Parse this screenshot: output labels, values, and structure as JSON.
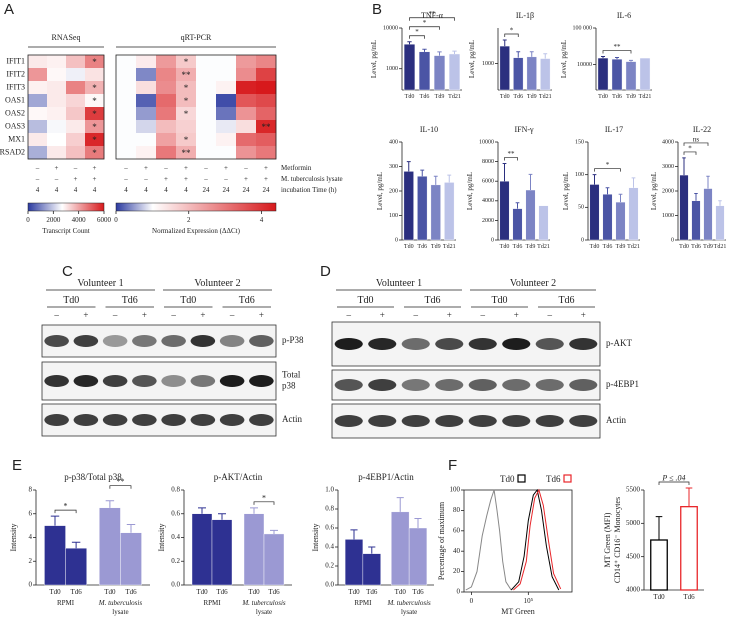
{
  "panel_labels": [
    "A",
    "B",
    "C",
    "D",
    "E",
    "F"
  ],
  "heatmap": {
    "sections": [
      "RNASeq",
      "qRT-PCR"
    ],
    "genes": [
      "IFIT1",
      "IFIT2",
      "IFIT3",
      "OAS1",
      "OAS2",
      "OAS3",
      "MX1",
      "RSAD2"
    ],
    "rnaseq_values": [
      [
        3000,
        2900,
        3600,
        4500
      ],
      [
        4200,
        2800,
        2500,
        3100
      ],
      [
        2900,
        3000,
        4500,
        3800
      ],
      [
        1500,
        3000,
        3300,
        2800
      ],
      [
        2800,
        2900,
        3500,
        5500
      ],
      [
        1800,
        2600,
        3000,
        4200
      ],
      [
        3000,
        2700,
        3400,
        5800
      ],
      [
        1600,
        3000,
        3600,
        4600
      ]
    ],
    "qpcr_values": [
      [
        1,
        1.3,
        2.5,
        1.8,
        1,
        1,
        2.5,
        2.8
      ],
      [
        1,
        0.4,
        2.8,
        2.2,
        1,
        1,
        2.7,
        3.8
      ],
      [
        1,
        1.5,
        2.7,
        2.0,
        1,
        1.2,
        4.3,
        4.6
      ],
      [
        1,
        0.2,
        3.2,
        2.0,
        1,
        0.1,
        3.5,
        3.7
      ],
      [
        1,
        0.5,
        3.0,
        1.6,
        1,
        0.3,
        2.6,
        3.3
      ],
      [
        1,
        0.8,
        2.0,
        1.7,
        1,
        0.9,
        1.5,
        4.2
      ],
      [
        1,
        1.0,
        2.4,
        1.8,
        1,
        1.2,
        3.2,
        3.4
      ],
      [
        1,
        1.2,
        3.0,
        2.2,
        1,
        1.0,
        2.6,
        3.0
      ]
    ],
    "rnaseq_stars": [
      [
        null,
        null,
        null,
        "*"
      ],
      [
        null,
        null,
        null,
        null
      ],
      [
        null,
        null,
        null,
        "*"
      ],
      [
        null,
        null,
        null,
        "*"
      ],
      [
        null,
        null,
        null,
        "*"
      ],
      [
        null,
        null,
        null,
        "*"
      ],
      [
        null,
        null,
        null,
        "*"
      ],
      [
        null,
        null,
        null,
        "*"
      ]
    ],
    "qpcr_stars": [
      [
        null,
        null,
        null,
        "*",
        null,
        null,
        null,
        null
      ],
      [
        null,
        null,
        null,
        "**",
        null,
        null,
        null,
        null
      ],
      [
        null,
        null,
        null,
        "*",
        null,
        null,
        null,
        null
      ],
      [
        null,
        null,
        null,
        "*",
        null,
        null,
        null,
        null
      ],
      [
        null,
        null,
        null,
        "*",
        null,
        null,
        null,
        null
      ],
      [
        null,
        null,
        null,
        null,
        null,
        null,
        null,
        "**"
      ],
      [
        null,
        null,
        null,
        "*",
        null,
        null,
        null,
        null
      ],
      [
        null,
        null,
        null,
        "**",
        null,
        null,
        null,
        null
      ]
    ],
    "condition_labels": [
      "Metformin",
      "M. tuberculosis lysate",
      "incubation Time (h)"
    ],
    "rnaseq_conditions": [
      [
        "–",
        "+",
        "–",
        "+"
      ],
      [
        "–",
        "–",
        "+",
        "+"
      ],
      [
        "4",
        "4",
        "4",
        "4"
      ]
    ],
    "qpcr_conditions": [
      [
        "–",
        "+",
        "–",
        "+",
        "–",
        "+",
        "–",
        "+"
      ],
      [
        "–",
        "–",
        "+",
        "+",
        "–",
        "–",
        "+",
        "+"
      ],
      [
        "4",
        "4",
        "4",
        "4",
        "24",
        "24",
        "24",
        "24"
      ]
    ],
    "rnaseq_scale": {
      "label": "Transcript Count",
      "lim": [
        0,
        6000
      ],
      "ticks": [
        0,
        2000,
        4000,
        6000
      ]
    },
    "qpcr_scale": {
      "label": "Normalized Expression (ΔΔCt)",
      "lim": [
        0,
        4.4
      ],
      "ticks": [
        0,
        2,
        4
      ]
    }
  },
  "cytokines": [
    {
      "type": "bar",
      "title": "TNF-α",
      "ylabel": "Level, pg/mL",
      "categories": [
        "Td0",
        "Td6",
        "Td9",
        "Td21"
      ],
      "values": [
        4000,
        2600,
        2100,
        2300
      ],
      "errors": [
        600,
        400,
        500,
        400
      ],
      "colors": [
        "#2b2f7f",
        "#4b55a5",
        "#7c84c4",
        "#bcc3e8"
      ],
      "log": true,
      "ylim": [
        300,
        10000
      ],
      "yticks": [
        1000,
        10000
      ],
      "brackets": [
        {
          "from": 0,
          "to": 1,
          "label": "*"
        },
        {
          "from": 0,
          "to": 2,
          "label": "*"
        },
        {
          "from": 0,
          "to": 3,
          "label": "**"
        }
      ]
    },
    {
      "type": "bar",
      "title": "IL-1β",
      "ylabel": "Level, pg/mL",
      "categories": [
        "Td0",
        "Td6",
        "Td9",
        "Td21"
      ],
      "values": [
        2200,
        1300,
        1350,
        1250
      ],
      "errors": [
        700,
        400,
        350,
        300
      ],
      "colors": [
        "#2b2f7f",
        "#4b55a5",
        "#7c84c4",
        "#bcc3e8"
      ],
      "log": true,
      "ylim": [
        300,
        5000
      ],
      "yticks": [
        1000
      ],
      "brackets": [
        {
          "from": 0,
          "to": 1,
          "label": "*"
        }
      ]
    },
    {
      "type": "bar",
      "title": "IL-6",
      "ylabel": "Level, pg/mL",
      "categories": [
        "Td0",
        "Td6",
        "Td9",
        "Td21"
      ],
      "values": [
        15000,
        14000,
        12000,
        15000
      ],
      "errors": [
        1500,
        1500,
        1000,
        null
      ],
      "colors": [
        "#2b2f7f",
        "#4b55a5",
        "#7c84c4",
        "#bcc3e8"
      ],
      "log": true,
      "ylim": [
        2000,
        100000
      ],
      "yticks": [
        10000,
        {
          "value": 100000,
          "label": "100 000"
        }
      ],
      "brackets": [
        {
          "from": 0,
          "to": 2,
          "label": "**"
        }
      ]
    },
    {
      "type": "bar",
      "title": "IL-10",
      "ylabel": "Level, pg/mL",
      "categories": [
        "Td0",
        "Td6",
        "Td9",
        "Td21"
      ],
      "values": [
        280,
        260,
        225,
        235
      ],
      "errors": [
        40,
        25,
        35,
        30
      ],
      "colors": [
        "#2b2f7f",
        "#4b55a5",
        "#7c84c4",
        "#bcc3e8"
      ],
      "ylim": [
        0,
        400
      ],
      "yticks": [
        0,
        100,
        200,
        300,
        400
      ]
    },
    {
      "type": "bar",
      "title": "IFN-γ",
      "ylabel": "Level, pg/mL",
      "categories": [
        "Td0",
        "Td6",
        "Td9",
        "Td21"
      ],
      "values": [
        6000,
        3200,
        5100,
        3500
      ],
      "errors": [
        1800,
        600,
        1600,
        null
      ],
      "colors": [
        "#2b2f7f",
        "#4b55a5",
        "#7c84c4",
        "#bcc3e8"
      ],
      "ylim": [
        0,
        10000
      ],
      "yticks": [
        0,
        2000,
        4000,
        6000,
        8000,
        10000
      ],
      "brackets": [
        {
          "from": 0,
          "to": 1,
          "label": "**"
        }
      ]
    },
    {
      "type": "bar",
      "title": "IL-17",
      "ylabel": "Level, pg/mL",
      "categories": [
        "Td0",
        "Td6",
        "Td9",
        "Td21"
      ],
      "values": [
        85,
        70,
        58,
        80
      ],
      "errors": [
        15,
        10,
        12,
        15
      ],
      "colors": [
        "#2b2f7f",
        "#4b55a5",
        "#7c84c4",
        "#bcc3e8"
      ],
      "ylim": [
        0,
        150
      ],
      "yticks": [
        0,
        50,
        100,
        150
      ],
      "brackets": [
        {
          "from": 0,
          "to": 2,
          "label": "*"
        }
      ]
    },
    {
      "type": "bar",
      "title": "IL-22",
      "ylabel": "Level, pg/mL",
      "categories": [
        "Td0",
        "Td6",
        "Td9",
        "Td21"
      ],
      "values": [
        2650,
        1600,
        2100,
        1400
      ],
      "errors": [
        700,
        300,
        500,
        200
      ],
      "colors": [
        "#2b2f7f",
        "#4b55a5",
        "#7c84c4",
        "#bcc3e8"
      ],
      "ylim": [
        0,
        4000
      ],
      "yticks": [
        0,
        1000,
        2000,
        3000,
        4000
      ],
      "brackets": [
        {
          "from": 0,
          "to": 1,
          "label": "*"
        },
        {
          "from": 0,
          "to": 2,
          "label": "ns"
        }
      ]
    }
  ],
  "blot_c": {
    "volunteers": [
      "Volunteer 1",
      "Volunteer 2"
    ],
    "timepoints": [
      "Td0",
      "Td6",
      "Td0",
      "Td6"
    ],
    "treatment": [
      "–",
      "+",
      "–",
      "+",
      "–",
      "+",
      "–",
      "+"
    ],
    "bands": [
      [
        "p-P38"
      ],
      [
        "Total",
        "p38"
      ],
      [
        "Actin"
      ]
    ]
  },
  "blot_d": {
    "volunteers": [
      "Volunteer 1",
      "Volunteer 2"
    ],
    "timepoints": [
      "Td0",
      "Td6",
      "Td0",
      "Td6"
    ],
    "treatment": [
      "–",
      "+",
      "–",
      "+",
      "–",
      "+",
      "–",
      "+"
    ],
    "bands": [
      [
        "p-AKT"
      ],
      [
        "p-4EBP1"
      ],
      [
        "Actin"
      ]
    ]
  },
  "quantification": [
    {
      "type": "bar",
      "title": "p-p38/Total p38",
      "ylabel": "Intensity",
      "categories": [
        "Td0",
        "Td6",
        "Td0",
        "Td6"
      ],
      "groups": [
        [
          "RPMI"
        ],
        [
          "M. tuberculosis",
          "lysate"
        ]
      ],
      "values": [
        5.0,
        3.1,
        6.5,
        4.4
      ],
      "errors": [
        0.8,
        0.5,
        0.6,
        0.7
      ],
      "colors": [
        "#2e3192",
        "#2e3192",
        "#9b99d3",
        "#9b99d3"
      ],
      "ylim": [
        0,
        8
      ],
      "yticks": [
        0,
        2,
        4,
        6,
        8
      ],
      "brackets": [
        {
          "from": 0,
          "to": 1,
          "label": "*"
        },
        {
          "from": 2,
          "to": 3,
          "label": "**"
        }
      ]
    },
    {
      "type": "bar",
      "title": "p-AKT/Actin",
      "ylabel": "Intensity",
      "categories": [
        "Td0",
        "Td6",
        "Td0",
        "Td6"
      ],
      "groups": [
        [
          "RPMI"
        ],
        [
          "M. tuberculosis",
          "lysate"
        ]
      ],
      "values": [
        0.6,
        0.55,
        0.6,
        0.43
      ],
      "errors": [
        0.05,
        0.05,
        0.05,
        0.03
      ],
      "colors": [
        "#2e3192",
        "#2e3192",
        "#9b99d3",
        "#9b99d3"
      ],
      "ylim": [
        0,
        0.8
      ],
      "yticks": [
        {
          "value": 0,
          "label": "0.0"
        },
        0.2,
        0.4,
        0.6,
        0.8
      ],
      "brackets": [
        {
          "from": 2,
          "to": 3,
          "label": "*"
        }
      ]
    },
    {
      "type": "bar",
      "title": "p-4EBP1/Actin",
      "ylabel": "Intensity",
      "categories": [
        "Td0",
        "Td6",
        "Td0",
        "Td6"
      ],
      "groups": [
        [
          "RPMI"
        ],
        [
          "M. tuberculosis",
          "lysate"
        ]
      ],
      "values": [
        0.48,
        0.33,
        0.77,
        0.6
      ],
      "errors": [
        0.1,
        0.07,
        0.15,
        0.1
      ],
      "colors": [
        "#2e3192",
        "#2e3192",
        "#9b99d3",
        "#9b99d3"
      ],
      "ylim": [
        0,
        1
      ],
      "yticks": [
        {
          "value": 0,
          "label": "0.0"
        },
        0.2,
        0.4,
        0.6,
        0.8,
        {
          "value": 1,
          "label": "1.0"
        }
      ]
    }
  ],
  "flow_histogram": {
    "type": "line",
    "xlabel": "MT Green",
    "ylabel": "Percentage of maximum",
    "xlim": [
      -4000,
      1000000
    ],
    "xticks": [
      {
        "value": 0,
        "label": "0"
      },
      {
        "value": 100000,
        "label": "10⁵"
      }
    ],
    "ylim": [
      0,
      100
    ],
    "yticks": [
      0,
      20,
      40,
      60,
      80,
      100
    ],
    "series": [
      {
        "color": "#888888",
        "x": [
          -3000,
          0,
          3000,
          6000,
          9000,
          12000,
          15000,
          18000,
          21000,
          25000,
          30000,
          40000
        ],
        "values": [
          2,
          5,
          20,
          55,
          75,
          90,
          100,
          80,
          60,
          30,
          10,
          2
        ]
      },
      {
        "name": "Td0",
        "color": "#000000",
        "x": [
          40000,
          60000,
          80000,
          100000,
          130000,
          160000,
          200000,
          260000,
          350000,
          500000
        ],
        "values": [
          2,
          10,
          35,
          70,
          95,
          100,
          80,
          45,
          15,
          2
        ]
      },
      {
        "name": "Td6",
        "color": "#e8262a",
        "x": [
          45000,
          65000,
          90000,
          110000,
          140000,
          175000,
          220000,
          290000,
          380000,
          550000
        ],
        "values": [
          2,
          8,
          30,
          65,
          92,
          100,
          85,
          50,
          18,
          3
        ]
      }
    ]
  },
  "flow_bar": {
    "type": "bar",
    "ylabel": [
      "MT Green (MFI)",
      "CD14⁺ CD16⁻ Monocytes"
    ],
    "categories": [
      "Td0",
      "Td6"
    ],
    "values": [
      4750,
      5250
    ],
    "errors": [
      350,
      280
    ],
    "colors": [
      "#000000",
      "#e8262a"
    ],
    "outline": true,
    "ylim": [
      4000,
      5500
    ],
    "yticks": [
      4000,
      4500,
      5000,
      5500
    ],
    "brackets": [
      {
        "from": 0,
        "to": 1,
        "label": "P ≤ .04"
      }
    ]
  }
}
